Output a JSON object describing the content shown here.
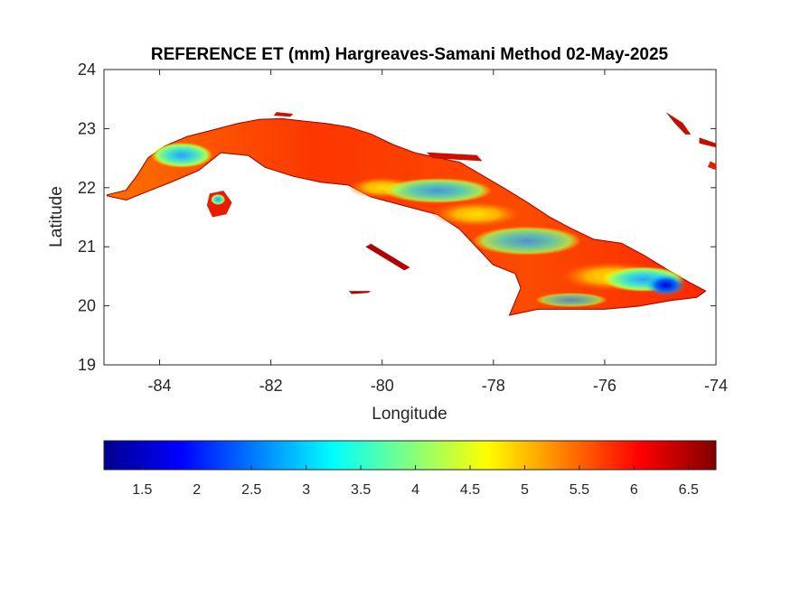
{
  "title": "REFERENCE ET (mm) Hargreaves-Samani Method  02-May-2025",
  "map": {
    "type": "heatmap",
    "region": "Cuba",
    "variable": "Reference ET (mm)",
    "xlabel": "Longitude",
    "ylabel": "Latitude",
    "xlim": [
      -85,
      -74
    ],
    "ylim": [
      19,
      24
    ],
    "xticks": [
      -84,
      -82,
      -80,
      -78,
      -76,
      -74
    ],
    "yticks": [
      19,
      20,
      21,
      22,
      23,
      24
    ],
    "xtick_labels": [
      "-84",
      "-82",
      "-80",
      "-78",
      "-76",
      "-74"
    ],
    "ytick_labels": [
      "19",
      "20",
      "21",
      "22",
      "23",
      "24"
    ],
    "colormap": "jet",
    "background_color": "#ffffff",
    "land_dominant_color": "#ff3300"
  },
  "colorbar": {
    "orientation": "horizontal",
    "placement": "bottom",
    "range": [
      1.15,
      6.75
    ],
    "ticks": [
      1.5,
      2,
      2.5,
      3,
      3.5,
      4,
      4.5,
      5,
      5.5,
      6,
      6.5
    ],
    "tick_labels": [
      "1.5",
      "2",
      "2.5",
      "3",
      "3.5",
      "4",
      "4.5",
      "5",
      "5.5",
      "6",
      "6.5"
    ]
  }
}
